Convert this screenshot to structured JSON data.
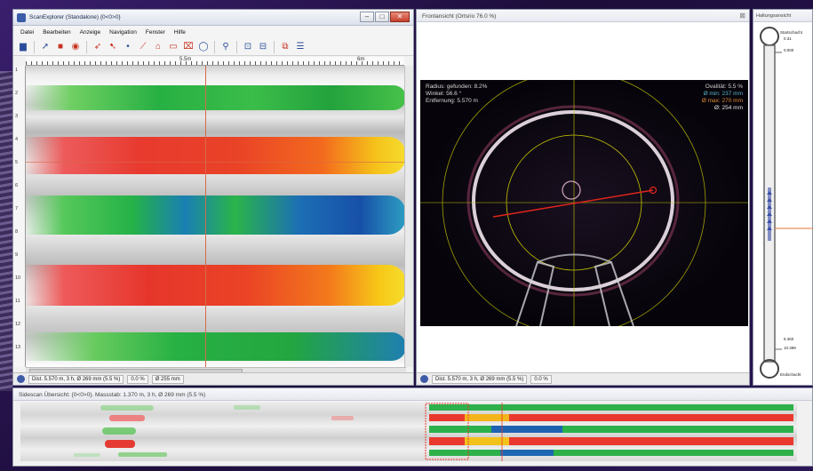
{
  "main_window": {
    "title": "ScanExplorer (Standalone) {0<0>0}",
    "menu": [
      "Datei",
      "Bearbeiten",
      "Anzeige",
      "Navigation",
      "Fenster",
      "Hilfe"
    ],
    "ruler_labels": [
      "5.5m",
      "6m"
    ],
    "vruler_labels": [
      "1",
      "2",
      "3",
      "4",
      "5",
      "6",
      "7",
      "8",
      "9",
      "10",
      "11",
      "12",
      "13"
    ],
    "status": {
      "distance": "Dist. 5.570 m, 3 h, Ø 269 mm (5.5 %)",
      "percent": "0.0 %",
      "diameter": "Ø 255 mm"
    }
  },
  "front_view": {
    "title": "Frontansicht (Ortsrio 76.0 %)",
    "overlay_left": [
      "Radius: gefunden: 8.2%",
      "Winkel: 56.6 °",
      "Entfernung: 5.570 m"
    ],
    "overlay_right": [
      "Ovalität: 5.5 %",
      "Ø min: 237 mm",
      "Ø max: 270 mm",
      "Ø: 254 mm"
    ],
    "status": {
      "distance": "Dist. 5.570 m, 3 h, Ø 269 mm (5.5 %)",
      "percent": "0.0 %"
    }
  },
  "side_panel": {
    "title": "Haltungsansicht",
    "top_label": "Startschacht",
    "top_value_1": "0.31",
    "top_value_2": "0.000",
    "bottom_value_1": "9.360",
    "bottom_value_2": "10.399",
    "bottom_label": "Endschacht"
  },
  "bottom_overview": {
    "title": "Sidescan Übersicht: {0<0>0}. Massstab: 1.370 m, 3 h, Ø 269 mm (5.5 %)"
  },
  "colors": {
    "accent": "#3f5ba8",
    "crosshair": "#d66a4a",
    "highlight_ring": "#c8c800"
  }
}
